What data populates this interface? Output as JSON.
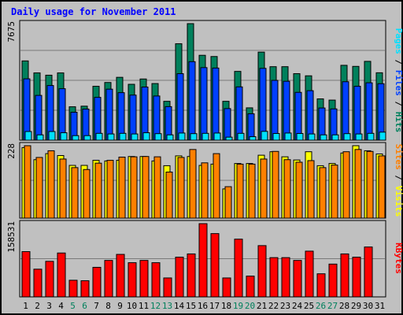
{
  "title": "Daily usage for November 2011",
  "colors": {
    "hits": "#00805c",
    "files": "#0040ff",
    "pages": "#00e0ff",
    "visits": "#ffff00",
    "sites": "#ff8000",
    "kbytes": "#ff0000",
    "weekend_label": "#00805c",
    "weekday_label": "#000000",
    "background": "#c0c0c0"
  },
  "chart_data": [
    {
      "type": "bar",
      "ymax_label": "7675",
      "ylim": [
        0,
        7675
      ],
      "axis_label_parts": [
        {
          "text": "Pages",
          "color": "#00e0ff"
        },
        {
          "text": " / ",
          "color": "#000000"
        },
        {
          "text": "Files",
          "color": "#0040ff"
        },
        {
          "text": " / ",
          "color": "#000000"
        },
        {
          "text": "Hits",
          "color": "#00805c"
        }
      ],
      "series": [
        {
          "name": "Hits",
          "key": "hits",
          "values": [
            5220,
            4430,
            4280,
            4430,
            2200,
            2240,
            3550,
            3800,
            4140,
            3680,
            4030,
            3730,
            2560,
            6350,
            7675,
            5590,
            5510,
            2560,
            4530,
            2130,
            5800,
            4840,
            4840,
            4380,
            4240,
            2720,
            2640,
            4930,
            4860,
            5190,
            4440
          ]
        },
        {
          "name": "Files",
          "key": "files",
          "values": [
            4040,
            2950,
            3600,
            3390,
            1840,
            2050,
            2820,
            3360,
            3130,
            2970,
            3500,
            2910,
            2210,
            4380,
            5170,
            4780,
            4750,
            2080,
            3510,
            1740,
            4730,
            3940,
            3880,
            3150,
            3260,
            2120,
            2060,
            3850,
            3550,
            3780,
            3720
          ]
        },
        {
          "name": "Pages",
          "key": "pages",
          "values": [
            570,
            350,
            570,
            490,
            300,
            300,
            450,
            410,
            450,
            410,
            490,
            430,
            350,
            470,
            430,
            450,
            470,
            200,
            450,
            230,
            580,
            440,
            470,
            440,
            410,
            350,
            350,
            430,
            410,
            450,
            530
          ]
        }
      ]
    },
    {
      "type": "bar",
      "ymax_label": "228",
      "ylim": [
        0,
        228
      ],
      "axis_label_parts": [
        {
          "text": "Sites",
          "color": "#ff8000"
        },
        {
          "text": " / ",
          "color": "#000000"
        },
        {
          "text": "Visits",
          "color": "#ffff00"
        }
      ],
      "series": [
        {
          "name": "Visits",
          "key": "visits",
          "values": [
            222,
            184,
            203,
            197,
            166,
            166,
            182,
            180,
            182,
            194,
            194,
            180,
            165,
            196,
            194,
            166,
            170,
            92,
            172,
            172,
            198,
            209,
            193,
            183,
            209,
            165,
            172,
            205,
            228,
            212,
            202
          ]
        },
        {
          "name": "Sites",
          "key": "sites",
          "values": [
            228,
            191,
            212,
            186,
            159,
            153,
            173,
            182,
            192,
            193,
            194,
            193,
            145,
            191,
            216,
            174,
            203,
            99,
            170,
            170,
            186,
            210,
            184,
            176,
            181,
            159,
            167,
            209,
            216,
            210,
            196
          ]
        }
      ]
    },
    {
      "type": "bar",
      "ymax_label": "158531",
      "ylim": [
        0,
        158531
      ],
      "axis_label_parts": [
        {
          "text": "KBytes",
          "color": "#ff0000"
        }
      ],
      "series": [
        {
          "name": "KBytes",
          "key": "kbytes",
          "values": [
            98000,
            60000,
            77000,
            95000,
            36000,
            35000,
            64000,
            79000,
            92000,
            74000,
            79000,
            74000,
            41000,
            86000,
            93000,
            158531,
            137000,
            41000,
            125000,
            45000,
            111000,
            85000,
            85000,
            79000,
            99000,
            50000,
            71000,
            93000,
            86000,
            108000,
            0
          ]
        }
      ]
    }
  ],
  "days": [
    "1",
    "2",
    "3",
    "4",
    "5",
    "6",
    "7",
    "8",
    "9",
    "10",
    "11",
    "12",
    "13",
    "14",
    "15",
    "16",
    "17",
    "18",
    "19",
    "20",
    "21",
    "22",
    "23",
    "24",
    "25",
    "26",
    "27",
    "28",
    "29",
    "30",
    "31"
  ],
  "weekend_days": [
    "5",
    "6",
    "12",
    "13",
    "19",
    "20",
    "26",
    "27"
  ]
}
